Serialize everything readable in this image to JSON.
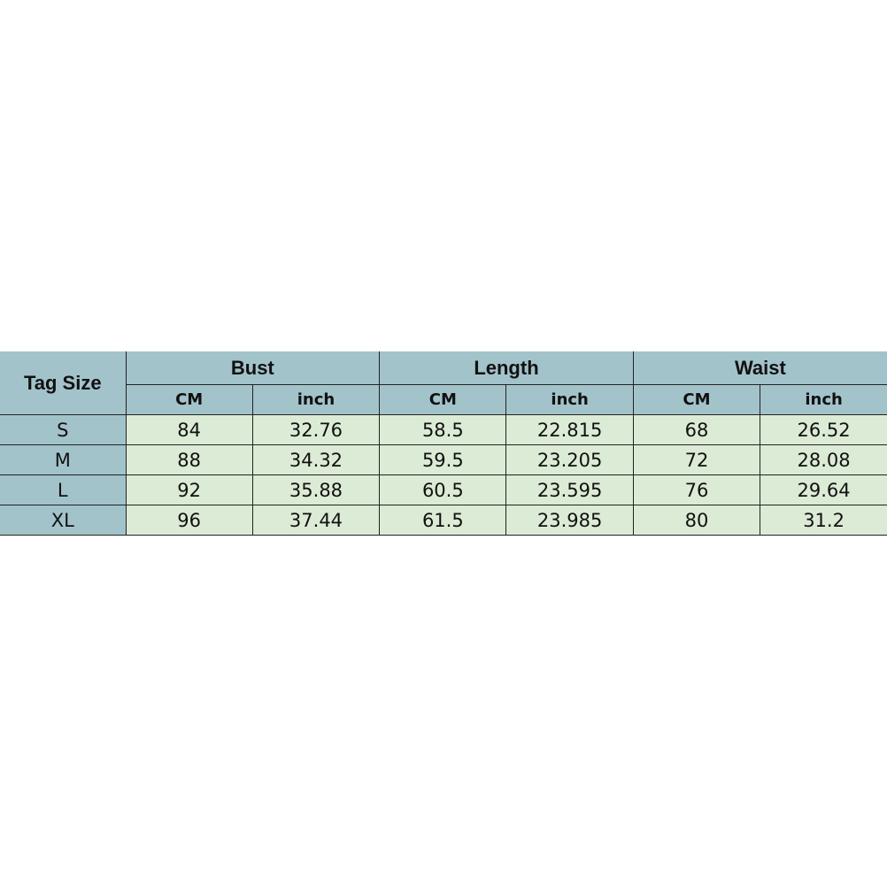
{
  "table": {
    "tag_header": "Tag Size",
    "groups": [
      "Bust",
      "Length",
      "Waist"
    ],
    "units": [
      "CM",
      "inch",
      "CM",
      "inch",
      "CM",
      "inch"
    ],
    "rows": [
      {
        "size": "S",
        "values": [
          "84",
          "32.76",
          "58.5",
          "22.815",
          "68",
          "26.52"
        ]
      },
      {
        "size": "M",
        "values": [
          "88",
          "34.32",
          "59.5",
          "23.205",
          "72",
          "28.08"
        ]
      },
      {
        "size": "L",
        "values": [
          "92",
          "35.88",
          "60.5",
          "23.595",
          "76",
          "29.64"
        ]
      },
      {
        "size": "XL",
        "values": [
          "96",
          "37.44",
          "61.5",
          "23.985",
          "80",
          "31.2"
        ]
      }
    ]
  },
  "colors": {
    "header": "#a3c3cb",
    "cell": "#dcebd5"
  }
}
